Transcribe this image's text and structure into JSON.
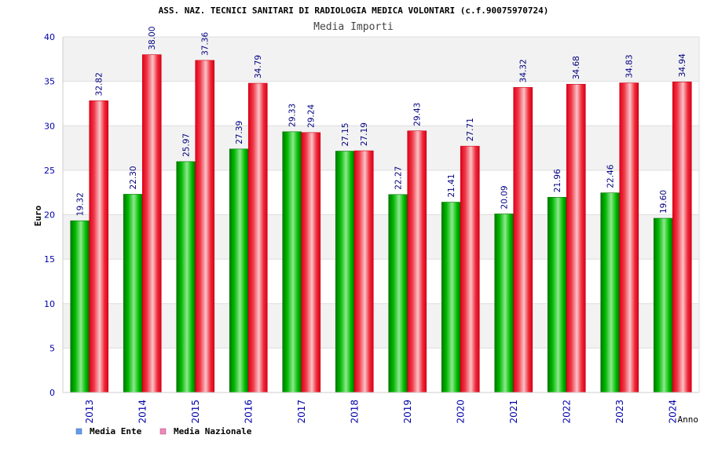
{
  "title": "ASS. NAZ. TECNICI SANITARI DI RADIOLOGIA MEDICA VOLONTARI (c.f.90075970724)",
  "subtitle": "Media Importi",
  "colors": {
    "ente": "#00aa00",
    "nazionale": "#ee1122",
    "axis_text": "#0000aa",
    "label_text": "#000080",
    "band_light": "#f2f2f2",
    "band_white": "#ffffff"
  },
  "chart_data": {
    "type": "bar",
    "title": "ASS. NAZ. TECNICI SANITARI DI RADIOLOGIA MEDICA VOLONTARI (c.f.90075970724)",
    "subtitle": "Media Importi",
    "xlabel": "Anno",
    "ylabel": "Euro",
    "ylim": [
      0,
      40
    ],
    "yticks": [
      0,
      5,
      10,
      15,
      20,
      25,
      30,
      35,
      40
    ],
    "grid": true,
    "legend_position": "bottom-left",
    "categories": [
      "2013",
      "2014",
      "2015",
      "2016",
      "2017",
      "2018",
      "2019",
      "2020",
      "2021",
      "2022",
      "2023",
      "2024"
    ],
    "series": [
      {
        "name": "Media Ente",
        "values": [
          19.32,
          22.3,
          25.97,
          27.39,
          29.33,
          27.15,
          22.27,
          21.41,
          20.09,
          21.96,
          22.46,
          19.6
        ],
        "labels": [
          "19.32",
          "22.30",
          "25.97",
          "27.39",
          "29.33",
          "27.15",
          "22.27",
          "21.41",
          "20.09",
          "21.96",
          "22.46",
          "19.60"
        ],
        "legend_color": "#6699ee"
      },
      {
        "name": "Media Nazionale",
        "values": [
          32.82,
          38.0,
          37.36,
          34.79,
          29.24,
          27.19,
          29.43,
          27.71,
          34.32,
          34.68,
          34.83,
          34.94
        ],
        "labels": [
          "32.82",
          "38.00",
          "37.36",
          "34.79",
          "29.24",
          "27.19",
          "29.43",
          "27.71",
          "34.32",
          "34.68",
          "34.83",
          "34.94"
        ],
        "legend_color": "#ee88bb"
      }
    ]
  }
}
